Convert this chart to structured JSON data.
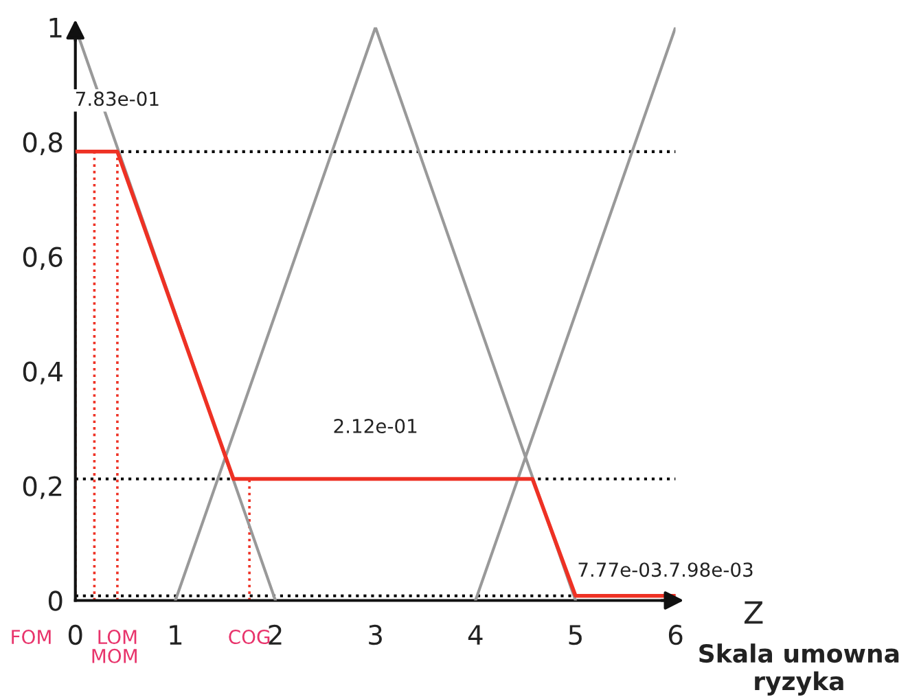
{
  "chart_data": {
    "type": "line",
    "xlabel": "Z",
    "series": [
      {
        "color": "#999999",
        "x": [
          0,
          2
        ],
        "values": [
          1,
          0
        ]
      },
      {
        "color": "#999999",
        "x": [
          1,
          3,
          5
        ],
        "values": [
          0,
          1,
          0
        ]
      },
      {
        "color": "#999999",
        "x": [
          4,
          6
        ],
        "values": [
          0,
          1
        ]
      },
      {
        "color": "#ee3124",
        "x": [
          0,
          0.42,
          1.58,
          4.57,
          5.0,
          6
        ],
        "values": [
          0.783,
          0.783,
          0.212,
          0.212,
          0.008,
          0.008
        ]
      }
    ],
    "xlim": [
      0,
      6
    ],
    "ylim": [
      0,
      1
    ],
    "xticks": [
      0,
      1,
      2,
      3,
      4,
      5,
      6
    ],
    "yticks": [
      0,
      {
        "value": 0.2,
        "label": "0,2"
      },
      {
        "value": 0.4,
        "label": "0,4"
      },
      {
        "value": 0.6,
        "label": "0,6"
      },
      {
        "value": 0.8,
        "label": "0,8"
      },
      1
    ],
    "ref_lines": [
      {
        "axis": "y",
        "value": 0.783,
        "color": "#000000",
        "line_style": "dotted"
      },
      {
        "axis": "y",
        "value": 0.212,
        "color": "#000000",
        "line_style": "dotted"
      },
      {
        "axis": "y",
        "value": 0.008,
        "color": "#000000",
        "line_style": "dotted"
      },
      {
        "axis": "x",
        "value": 0,
        "label": "FOM",
        "color": "#ee3124",
        "line_style": "dotted"
      },
      {
        "axis": "x",
        "value": 0.19,
        "label": "MOM",
        "color": "#ee3124",
        "line_style": "dotted"
      },
      {
        "axis": "x",
        "value": 0.42,
        "label": "LOM",
        "color": "#ee3124",
        "line_style": "dotted"
      },
      {
        "axis": "x",
        "value": 1.74,
        "label": "COG",
        "color": "#ee3124",
        "line_style": "dotted"
      }
    ],
    "annotations": [
      {
        "text": "7.83e-01",
        "x": 0.42,
        "y": 0.783
      },
      {
        "text": "2.12e-01",
        "x": 3,
        "y": 0.212
      },
      {
        "text": "7.77e-03.7.98e-03",
        "x": 5.9,
        "y": 0.008
      },
      "Skala umowna ryzyka"
    ],
    "grid": false
  }
}
